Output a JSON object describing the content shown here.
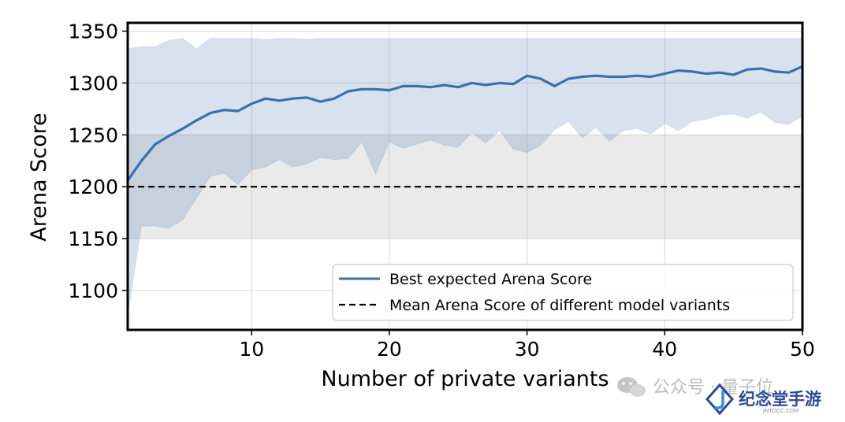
{
  "chart_data": {
    "type": "line",
    "title": "",
    "xlabel": "Number of private variants",
    "ylabel": "Arena Score",
    "xlim": [
      1,
      50
    ],
    "ylim": [
      1062,
      1358
    ],
    "xticks": [
      10,
      20,
      30,
      40,
      50
    ],
    "yticks": [
      1100,
      1150,
      1200,
      1250,
      1300,
      1350
    ],
    "grid": true,
    "legend_position": "lower-right",
    "x": [
      1,
      2,
      3,
      4,
      5,
      6,
      7,
      8,
      9,
      10,
      11,
      12,
      13,
      14,
      15,
      16,
      17,
      18,
      19,
      20,
      21,
      22,
      23,
      24,
      25,
      26,
      27,
      28,
      29,
      30,
      31,
      32,
      33,
      34,
      35,
      36,
      37,
      38,
      39,
      40,
      41,
      42,
      43,
      44,
      45,
      46,
      47,
      48,
      49,
      50
    ],
    "series": [
      {
        "name": "Best expected Arena Score",
        "style": "solid",
        "color": "#3a70ad",
        "values": [
          1206,
          1225,
          1241,
          1249,
          1256,
          1264,
          1271,
          1274,
          1273,
          1280,
          1285,
          1283,
          1285,
          1286,
          1282,
          1285,
          1292,
          1294,
          1294,
          1293,
          1297,
          1297,
          1296,
          1298,
          1296,
          1300,
          1298,
          1300,
          1299,
          1307,
          1304,
          1297,
          1304,
          1306,
          1307,
          1306,
          1306,
          1307,
          1306,
          1309,
          1312,
          1311,
          1309,
          1310,
          1308,
          1313,
          1314,
          1311,
          1310,
          1316
        ],
        "band_upper": [
          1333,
          1335,
          1335,
          1341,
          1343,
          1333,
          1343,
          1343,
          1343,
          1343,
          1342,
          1343,
          1343,
          1342,
          1343,
          1343,
          1343,
          1343,
          1343,
          1343,
          1343,
          1343,
          1343,
          1343,
          1343,
          1343,
          1343,
          1343,
          1343,
          1343,
          1343,
          1343,
          1343,
          1343,
          1343,
          1343,
          1343,
          1343,
          1343,
          1343,
          1343,
          1343,
          1343,
          1343,
          1343,
          1343,
          1343,
          1343,
          1343,
          1343
        ],
        "band_lower": [
          1076,
          1162,
          1162,
          1160,
          1168,
          1189,
          1210,
          1213,
          1202,
          1216,
          1219,
          1226,
          1219,
          1222,
          1228,
          1226,
          1227,
          1243,
          1212,
          1243,
          1237,
          1241,
          1245,
          1240,
          1238,
          1252,
          1242,
          1254,
          1236,
          1233,
          1240,
          1255,
          1263,
          1247,
          1257,
          1244,
          1254,
          1256,
          1251,
          1261,
          1254,
          1263,
          1265,
          1269,
          1270,
          1266,
          1272,
          1262,
          1260,
          1268
        ]
      },
      {
        "name": "Mean Arena Score of different model variants",
        "style": "dashed",
        "color": "#000000",
        "value": 1200,
        "band": [
          1150,
          1250
        ]
      }
    ]
  },
  "watermark": {
    "left_text": "公众号 · 量子位",
    "brand_text": "纪念堂手游",
    "brand_url": "JNTDCC.COM"
  }
}
